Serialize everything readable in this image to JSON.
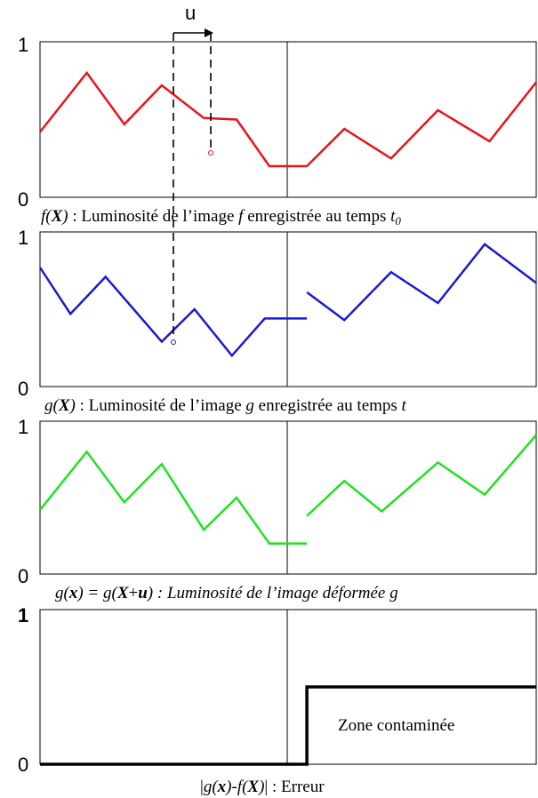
{
  "marker": {
    "label": "u"
  },
  "panels": [
    {
      "id": "f",
      "y_top_label": "1",
      "y_bottom_label": "0",
      "caption": {
        "var": "f(",
        "var_bold": "X",
        "var_close": ")",
        "text": " : Luminosité de l’image ",
        "img": "f",
        "text2": " enregistrée au temps ",
        "t": "t",
        "t_sub": "0"
      },
      "color": "#e8141c",
      "series": [
        {
          "x": [
            0,
            1.0,
            1.8,
            2.6,
            3.5,
            4.2,
            4.9,
            5.7
          ],
          "y": [
            0.42,
            0.8,
            0.47,
            0.72,
            0.51,
            0.5,
            0.2,
            0.2
          ]
        },
        {
          "x": [
            5.7,
            6.5,
            7.5,
            8.5,
            9.6,
            10.6
          ],
          "y": [
            0.2,
            0.44,
            0.25,
            0.56,
            0.36,
            0.74
          ]
        }
      ]
    },
    {
      "id": "g",
      "y_top_label": "1",
      "y_bottom_label": "0",
      "caption": {
        "var": "g(",
        "var_bold": "X",
        "var_close": ")",
        "text": " : Luminosité de l’image ",
        "img": "g",
        "text2": " enregistrée au temps ",
        "t": "t"
      },
      "color": "#1a1ad1",
      "series": [
        {
          "x": [
            0,
            0.65,
            1.4,
            2.6,
            3.3,
            4.1,
            4.8,
            5.7
          ],
          "y": [
            0.77,
            0.47,
            0.71,
            0.29,
            0.5,
            0.2,
            0.44,
            0.44
          ]
        },
        {
          "x": [
            5.7,
            6.5,
            7.5,
            8.5,
            9.5,
            10.6
          ],
          "y": [
            0.61,
            0.43,
            0.74,
            0.54,
            0.92,
            0.67
          ]
        }
      ]
    },
    {
      "id": "gx",
      "y_top_label": "1",
      "y_bottom_label": "0",
      "caption": {
        "text_a": "g(",
        "bold_a": "x",
        "text_b": ") = g(",
        "bold_b": "X",
        "text_c": "+",
        "bold_c": "u",
        "text_d": ") : Luminosité de l’image déformée ",
        "img": "g"
      },
      "color": "#22e022",
      "series": [
        {
          "x": [
            0,
            1.0,
            1.8,
            2.6,
            3.5,
            4.2,
            4.9,
            5.7
          ],
          "y": [
            0.42,
            0.8,
            0.47,
            0.72,
            0.29,
            0.5,
            0.2,
            0.2
          ]
        },
        {
          "x": [
            5.7,
            6.5,
            7.3,
            8.5,
            9.5,
            10.6
          ],
          "y": [
            0.38,
            0.61,
            0.41,
            0.73,
            0.52,
            0.91
          ]
        }
      ]
    },
    {
      "id": "err",
      "y_top_label": "1",
      "y_bottom_label": "0",
      "caption": {
        "bar1": "|",
        "text_a": "g(",
        "bold_a": "x",
        "text_b": ")-f(",
        "bold_b": "X",
        "text_c": ")",
        "bar2": "|",
        "text_d": " : Erreur"
      },
      "zone_label": "Zone contaminée",
      "color": "#000000",
      "series": [
        {
          "x": [
            0,
            5.7,
            5.7,
            10.6
          ],
          "y": [
            0,
            0,
            0.5,
            0.5
          ]
        }
      ]
    }
  ]
}
